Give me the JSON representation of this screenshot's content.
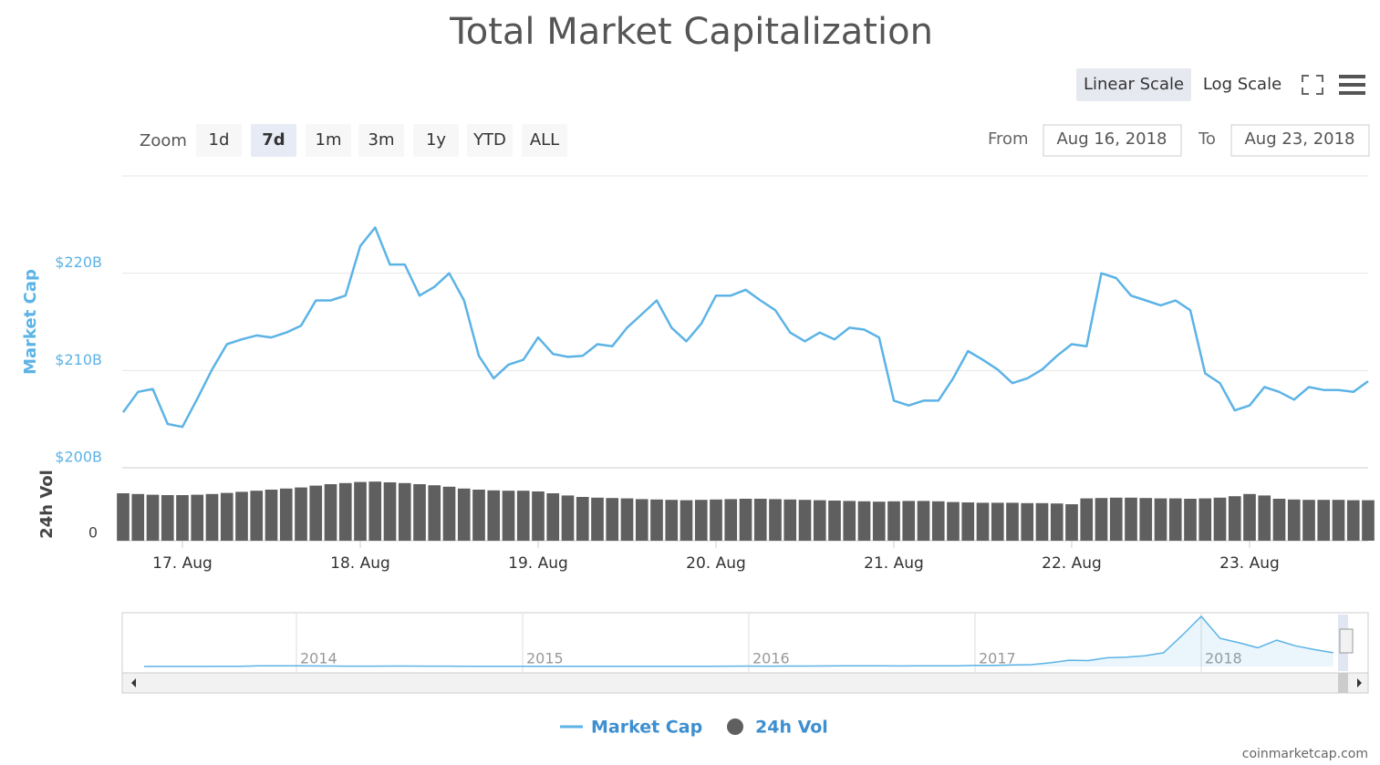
{
  "title": "Total Market Capitalization",
  "scale_buttons": [
    "Linear Scale",
    "Log Scale"
  ],
  "zoom": {
    "label": "Zoom",
    "buttons": [
      "1d",
      "7d",
      "1m",
      "3m",
      "1y",
      "YTD",
      "ALL"
    ]
  },
  "range": {
    "from_label": "From",
    "from": "Aug 16, 2018",
    "to_label": "To",
    "to": "Aug 23, 2018"
  },
  "credits": "coinmarketcap.com",
  "chart_data": [
    {
      "type": "line",
      "ylabel": "Market Cap",
      "y2label": "24h Vol",
      "categories": [
        null,
        null,
        null,
        null,
        "17. Aug",
        null,
        null,
        null,
        null,
        null,
        null,
        null,
        null,
        null,
        null,
        null,
        "18. Aug",
        null,
        null,
        null,
        null,
        null,
        null,
        null,
        null,
        null,
        null,
        null,
        "19. Aug",
        null,
        null,
        null,
        null,
        null,
        null,
        null,
        null,
        null,
        null,
        null,
        "20. Aug",
        null,
        null,
        null,
        null,
        null,
        null,
        null,
        null,
        null,
        null,
        null,
        "21. Aug",
        null,
        null,
        null,
        null,
        null,
        null,
        null,
        null,
        null,
        null,
        null,
        "22. Aug",
        null,
        null,
        null,
        null,
        null,
        null,
        null,
        null,
        null,
        null,
        null,
        "23. Aug",
        null,
        null,
        null,
        null,
        null,
        null,
        null,
        null
      ],
      "ylim": [
        200,
        230
      ],
      "yticks": [
        {
          "value": 200,
          "label": "$200B"
        },
        {
          "value": 210,
          "label": "$210B"
        },
        {
          "value": 220,
          "label": "$220B"
        }
      ],
      "y2lim": [
        0,
        20
      ],
      "y2ticks": [
        0
      ],
      "grid": true,
      "series": [
        {
          "name": "Market Cap",
          "color": "#5cb3e6",
          "type": "line",
          "values": [
            205.7,
            207.8,
            208.1,
            204.5,
            204.2,
            207.1,
            210.1,
            212.7,
            213.2,
            213.6,
            213.4,
            213.9,
            214.6,
            217.2,
            217.2,
            217.7,
            222.8,
            224.7,
            220.9,
            220.9,
            217.7,
            218.6,
            220.0,
            217.2,
            211.5,
            209.2,
            210.6,
            211.1,
            213.4,
            211.7,
            211.4,
            211.5,
            212.7,
            212.5,
            214.4,
            215.8,
            217.2,
            214.4,
            213.0,
            214.8,
            217.7,
            217.7,
            218.3,
            217.2,
            216.2,
            213.9,
            213.0,
            213.9,
            213.2,
            214.4,
            214.2,
            213.4,
            206.9,
            206.4,
            206.9,
            206.9,
            209.2,
            212.0,
            211.1,
            210.1,
            208.7,
            209.2,
            210.1,
            211.5,
            212.7,
            212.5,
            220.0,
            219.5,
            217.7,
            217.2,
            216.7,
            217.2,
            216.2,
            209.7,
            208.7,
            205.9,
            206.4,
            208.3,
            207.8,
            207.0,
            208.3,
            208.0,
            208.0,
            207.8,
            208.9
          ]
        },
        {
          "name": "24h Vol",
          "color": "#5f5f5f",
          "type": "bar",
          "axis": "y2",
          "values": [
            13.0,
            12.8,
            12.6,
            12.5,
            12.5,
            12.6,
            12.8,
            13.1,
            13.4,
            13.7,
            14.0,
            14.3,
            14.6,
            15.1,
            15.5,
            15.8,
            16.1,
            16.2,
            16.0,
            15.8,
            15.5,
            15.2,
            14.8,
            14.3,
            14.0,
            13.8,
            13.7,
            13.7,
            13.5,
            13.0,
            12.4,
            12.0,
            11.8,
            11.7,
            11.6,
            11.4,
            11.3,
            11.2,
            11.1,
            11.2,
            11.3,
            11.4,
            11.5,
            11.5,
            11.4,
            11.3,
            11.2,
            11.1,
            11.0,
            10.9,
            10.8,
            10.7,
            10.8,
            10.9,
            10.9,
            10.8,
            10.6,
            10.5,
            10.4,
            10.4,
            10.4,
            10.3,
            10.3,
            10.2,
            10.0,
            11.6,
            11.7,
            11.8,
            11.8,
            11.7,
            11.6,
            11.6,
            11.5,
            11.6,
            11.8,
            12.2,
            12.8,
            12.4,
            11.5,
            11.3,
            11.2,
            11.2,
            11.2,
            11.1,
            11.1
          ]
        }
      ]
    },
    {
      "type": "area",
      "categories": [
        null,
        null,
        null,
        null,
        null,
        null,
        "2014",
        null,
        null,
        null,
        null,
        null,
        null,
        null,
        null,
        null,
        null,
        null,
        "2015",
        null,
        null,
        null,
        null,
        null,
        null,
        null,
        null,
        null,
        null,
        null,
        "2016",
        null,
        null,
        null,
        null,
        null,
        null,
        null,
        null,
        null,
        null,
        null,
        "2017",
        null,
        null,
        null,
        null,
        null,
        null,
        null,
        null,
        null,
        null,
        null,
        "2018",
        null,
        null,
        null,
        null,
        null,
        null,
        null
      ],
      "series": [
        {
          "color": "#5cb3e6",
          "values": [
            1.5,
            2,
            2.5,
            5,
            10,
            12,
            10,
            9,
            7,
            6,
            6,
            8,
            8,
            6,
            6,
            5,
            5,
            5,
            4,
            3.5,
            3.5,
            3.5,
            3.5,
            3.5,
            4,
            3.5,
            3.5,
            3.5,
            5,
            6,
            7,
            6,
            7,
            8,
            9,
            10,
            10,
            10,
            9,
            11,
            11,
            12,
            17,
            19,
            25,
            30,
            60,
            100,
            95,
            140,
            150,
            170,
            220,
            500,
            800,
            450,
            380,
            300,
            420,
            330,
            270,
            220
          ]
        }
      ]
    }
  ]
}
